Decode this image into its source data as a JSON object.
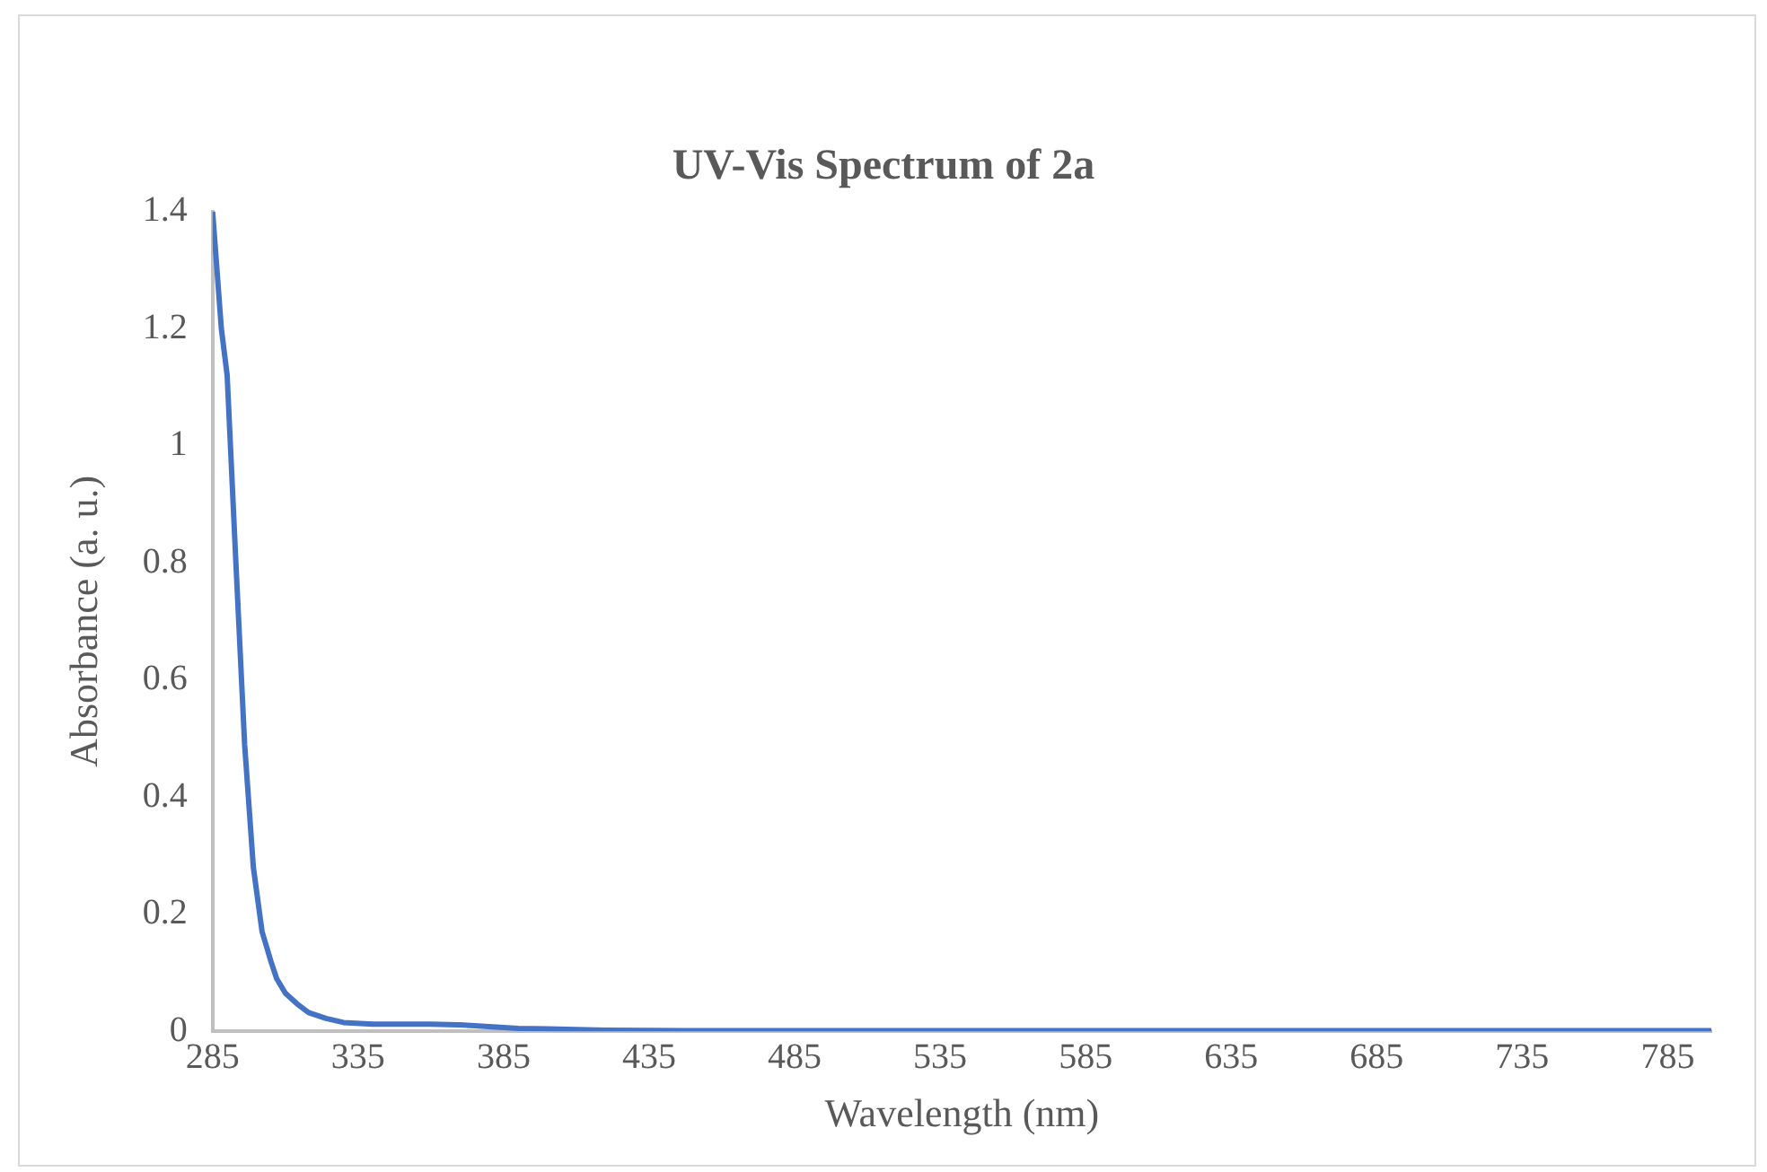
{
  "chart_data": {
    "type": "line",
    "title": "UV-Vis Spectrum of 2a",
    "xlabel": "Wavelength (nm)",
    "ylabel": "Absorbance (a. u.)",
    "series": [
      {
        "color": "#4472c4",
        "x": [
          285,
          288,
          290,
          293,
          296,
          299,
          302,
          305,
          307,
          310,
          314,
          318,
          324,
          330,
          340,
          350,
          360,
          370,
          380,
          390,
          400,
          420,
          450,
          500,
          550,
          600,
          650,
          700,
          750,
          800
        ],
        "values": [
          1.4,
          1.2,
          1.12,
          0.8,
          0.49,
          0.28,
          0.17,
          0.12,
          0.09,
          0.065,
          0.047,
          0.032,
          0.022,
          0.015,
          0.012,
          0.012,
          0.012,
          0.011,
          0.008,
          0.005,
          0.004,
          0.002,
          0.001,
          0.001,
          0.001,
          0.001,
          0.001,
          0.001,
          0.001,
          0.001
        ]
      }
    ],
    "xlim": [
      285,
      800
    ],
    "xticks": [
      285,
      335,
      385,
      435,
      485,
      535,
      585,
      635,
      685,
      735,
      785
    ],
    "ylim": [
      0,
      1.4
    ],
    "yticks": [
      0,
      0.2,
      0.4,
      0.6,
      0.8,
      1,
      1.2,
      1.4
    ],
    "grid": false,
    "legend": false,
    "marker": "none",
    "line_style": "solid"
  }
}
